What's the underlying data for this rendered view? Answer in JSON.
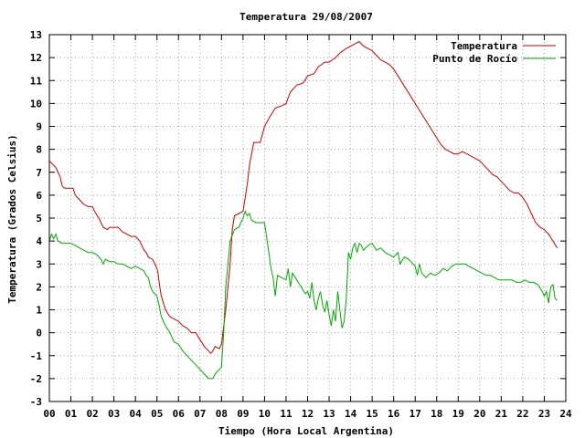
{
  "chart_data": {
    "type": "line",
    "title": "Temperatura 29/08/2007",
    "xlabel": "Tiempo (Hora Local Argentina)",
    "ylabel": "Temperatura (Grados Celsius)",
    "xlim": [
      0,
      24
    ],
    "ylim": [
      -3,
      13
    ],
    "x_ticks": [
      0,
      1,
      2,
      3,
      4,
      5,
      6,
      7,
      8,
      9,
      10,
      11,
      12,
      13,
      14,
      15,
      16,
      17,
      18,
      19,
      20,
      21,
      22,
      23,
      24
    ],
    "x_tick_labels": [
      "00",
      "01",
      "02",
      "03",
      "04",
      "05",
      "06",
      "07",
      "08",
      "09",
      "10",
      "11",
      "12",
      "13",
      "14",
      "15",
      "16",
      "17",
      "18",
      "19",
      "20",
      "21",
      "22",
      "23",
      "24"
    ],
    "y_ticks": [
      -3,
      -2,
      -1,
      0,
      1,
      2,
      3,
      4,
      5,
      6,
      7,
      8,
      9,
      10,
      11,
      12,
      13
    ],
    "y_tick_labels": [
      "-3",
      "-2",
      "-1",
      "0",
      "1",
      "2",
      "3",
      "4",
      "5",
      "6",
      "7",
      "8",
      "9",
      "10",
      "11",
      "12",
      "13"
    ],
    "grid": true,
    "legend_position": "top-right",
    "series": [
      {
        "name": "Temperatura",
        "color": "#cc0000",
        "points": [
          [
            0.0,
            7.5
          ],
          [
            0.3,
            7.2
          ],
          [
            0.5,
            6.8
          ],
          [
            0.6,
            6.4
          ],
          [
            0.7,
            6.3
          ],
          [
            1.0,
            6.3
          ],
          [
            1.1,
            6.3
          ],
          [
            1.2,
            6.0
          ],
          [
            1.4,
            5.8
          ],
          [
            1.6,
            5.6
          ],
          [
            1.8,
            5.5
          ],
          [
            2.0,
            5.5
          ],
          [
            2.1,
            5.3
          ],
          [
            2.3,
            5.0
          ],
          [
            2.4,
            4.8
          ],
          [
            2.5,
            4.6
          ],
          [
            2.7,
            4.5
          ],
          [
            2.8,
            4.6
          ],
          [
            3.0,
            4.6
          ],
          [
            3.2,
            4.6
          ],
          [
            3.4,
            4.4
          ],
          [
            3.6,
            4.3
          ],
          [
            3.8,
            4.2
          ],
          [
            4.0,
            4.2
          ],
          [
            4.2,
            4.0
          ],
          [
            4.3,
            3.8
          ],
          [
            4.4,
            3.6
          ],
          [
            4.5,
            3.5
          ],
          [
            4.6,
            3.3
          ],
          [
            4.8,
            3.2
          ],
          [
            4.9,
            3.0
          ],
          [
            5.0,
            2.8
          ],
          [
            5.05,
            2.6
          ],
          [
            5.1,
            2.2
          ],
          [
            5.2,
            1.6
          ],
          [
            5.4,
            1.0
          ],
          [
            5.6,
            0.7
          ],
          [
            5.8,
            0.6
          ],
          [
            6.0,
            0.5
          ],
          [
            6.2,
            0.3
          ],
          [
            6.4,
            0.2
          ],
          [
            6.6,
            0.0
          ],
          [
            6.8,
            0.0
          ],
          [
            7.0,
            -0.3
          ],
          [
            7.2,
            -0.6
          ],
          [
            7.4,
            -0.8
          ],
          [
            7.5,
            -0.9
          ],
          [
            7.6,
            -0.8
          ],
          [
            7.7,
            -0.6
          ],
          [
            7.9,
            -0.7
          ],
          [
            8.0,
            -0.5
          ],
          [
            8.2,
            1.0
          ],
          [
            8.4,
            3.0
          ],
          [
            8.5,
            4.5
          ],
          [
            8.6,
            5.1
          ],
          [
            8.8,
            5.2
          ],
          [
            9.0,
            5.3
          ],
          [
            9.2,
            6.5
          ],
          [
            9.3,
            7.3
          ],
          [
            9.4,
            7.8
          ],
          [
            9.5,
            8.3
          ],
          [
            9.8,
            8.3
          ],
          [
            10.0,
            9.0
          ],
          [
            10.3,
            9.5
          ],
          [
            10.5,
            9.8
          ],
          [
            10.8,
            9.9
          ],
          [
            11.0,
            10.0
          ],
          [
            11.2,
            10.5
          ],
          [
            11.5,
            10.8
          ],
          [
            11.8,
            10.9
          ],
          [
            12.0,
            11.2
          ],
          [
            12.3,
            11.3
          ],
          [
            12.5,
            11.6
          ],
          [
            12.8,
            11.8
          ],
          [
            13.0,
            11.8
          ],
          [
            13.3,
            12.0
          ],
          [
            13.5,
            12.2
          ],
          [
            13.8,
            12.4
          ],
          [
            14.0,
            12.5
          ],
          [
            14.2,
            12.6
          ],
          [
            14.4,
            12.7
          ],
          [
            14.6,
            12.5
          ],
          [
            14.8,
            12.4
          ],
          [
            15.0,
            12.3
          ],
          [
            15.2,
            12.1
          ],
          [
            15.4,
            11.9
          ],
          [
            15.6,
            11.8
          ],
          [
            15.8,
            11.7
          ],
          [
            16.0,
            11.5
          ],
          [
            16.2,
            11.2
          ],
          [
            16.4,
            10.9
          ],
          [
            16.6,
            10.6
          ],
          [
            16.8,
            10.3
          ],
          [
            17.0,
            10.0
          ],
          [
            17.2,
            9.7
          ],
          [
            17.4,
            9.4
          ],
          [
            17.6,
            9.1
          ],
          [
            17.8,
            8.8
          ],
          [
            18.0,
            8.5
          ],
          [
            18.2,
            8.2
          ],
          [
            18.4,
            8.0
          ],
          [
            18.6,
            7.9
          ],
          [
            18.8,
            7.8
          ],
          [
            19.0,
            7.8
          ],
          [
            19.2,
            7.9
          ],
          [
            19.4,
            7.8
          ],
          [
            19.6,
            7.7
          ],
          [
            19.8,
            7.6
          ],
          [
            20.0,
            7.5
          ],
          [
            20.2,
            7.3
          ],
          [
            20.4,
            7.1
          ],
          [
            20.6,
            6.9
          ],
          [
            20.8,
            6.8
          ],
          [
            21.0,
            6.6
          ],
          [
            21.2,
            6.4
          ],
          [
            21.4,
            6.2
          ],
          [
            21.6,
            6.1
          ],
          [
            21.8,
            6.1
          ],
          [
            22.0,
            5.9
          ],
          [
            22.2,
            5.6
          ],
          [
            22.4,
            5.2
          ],
          [
            22.6,
            4.8
          ],
          [
            22.8,
            4.6
          ],
          [
            23.0,
            4.5
          ],
          [
            23.2,
            4.3
          ],
          [
            23.4,
            4.0
          ],
          [
            23.6,
            3.7
          ]
        ]
      },
      {
        "name": "Punto de Rocío",
        "color": "#00aa00",
        "points": [
          [
            0.0,
            4.0
          ],
          [
            0.1,
            4.3
          ],
          [
            0.2,
            4.1
          ],
          [
            0.3,
            4.3
          ],
          [
            0.4,
            4.0
          ],
          [
            0.6,
            3.9
          ],
          [
            0.8,
            3.9
          ],
          [
            1.0,
            3.9
          ],
          [
            1.2,
            3.8
          ],
          [
            1.4,
            3.7
          ],
          [
            1.6,
            3.6
          ],
          [
            1.8,
            3.5
          ],
          [
            2.0,
            3.5
          ],
          [
            2.2,
            3.4
          ],
          [
            2.4,
            3.2
          ],
          [
            2.5,
            3.0
          ],
          [
            2.6,
            3.2
          ],
          [
            2.8,
            3.1
          ],
          [
            3.0,
            3.1
          ],
          [
            3.2,
            3.0
          ],
          [
            3.4,
            3.0
          ],
          [
            3.6,
            2.9
          ],
          [
            3.8,
            2.8
          ],
          [
            4.0,
            2.9
          ],
          [
            4.2,
            2.8
          ],
          [
            4.4,
            2.7
          ],
          [
            4.5,
            2.5
          ],
          [
            4.6,
            2.4
          ],
          [
            4.7,
            2.0
          ],
          [
            4.8,
            1.8
          ],
          [
            5.0,
            1.6
          ],
          [
            5.1,
            1.2
          ],
          [
            5.2,
            0.7
          ],
          [
            5.4,
            0.3
          ],
          [
            5.6,
            0.0
          ],
          [
            5.8,
            -0.4
          ],
          [
            6.0,
            -0.5
          ],
          [
            6.2,
            -0.8
          ],
          [
            6.4,
            -1.0
          ],
          [
            6.6,
            -1.2
          ],
          [
            6.8,
            -1.4
          ],
          [
            7.0,
            -1.6
          ],
          [
            7.2,
            -1.8
          ],
          [
            7.4,
            -2.0
          ],
          [
            7.6,
            -2.0
          ],
          [
            7.7,
            -1.8
          ],
          [
            7.9,
            -1.6
          ],
          [
            8.0,
            -1.5
          ],
          [
            8.1,
            0.0
          ],
          [
            8.2,
            2.0
          ],
          [
            8.4,
            4.0
          ],
          [
            8.6,
            4.5
          ],
          [
            8.8,
            4.6
          ],
          [
            9.0,
            5.0
          ],
          [
            9.1,
            5.3
          ],
          [
            9.2,
            5.1
          ],
          [
            9.3,
            5.2
          ],
          [
            9.4,
            4.9
          ],
          [
            9.6,
            4.8
          ],
          [
            9.8,
            4.8
          ],
          [
            10.0,
            4.8
          ],
          [
            10.2,
            3.5
          ],
          [
            10.3,
            2.8
          ],
          [
            10.4,
            2.4
          ],
          [
            10.5,
            1.6
          ],
          [
            10.6,
            2.5
          ],
          [
            10.8,
            2.4
          ],
          [
            11.0,
            2.3
          ],
          [
            11.1,
            2.8
          ],
          [
            11.2,
            2.0
          ],
          [
            11.3,
            2.6
          ],
          [
            11.5,
            2.3
          ],
          [
            11.7,
            2.0
          ],
          [
            11.9,
            1.7
          ],
          [
            12.0,
            1.8
          ],
          [
            12.1,
            1.5
          ],
          [
            12.2,
            2.2
          ],
          [
            12.3,
            1.4
          ],
          [
            12.4,
            1.0
          ],
          [
            12.5,
            1.5
          ],
          [
            12.6,
            1.8
          ],
          [
            12.7,
            1.2
          ],
          [
            12.8,
            0.9
          ],
          [
            12.9,
            1.4
          ],
          [
            13.0,
            0.8
          ],
          [
            13.1,
            0.3
          ],
          [
            13.2,
            1.0
          ],
          [
            13.3,
            0.5
          ],
          [
            13.4,
            1.8
          ],
          [
            13.5,
            1.0
          ],
          [
            13.6,
            0.2
          ],
          [
            13.7,
            0.5
          ],
          [
            13.8,
            1.5
          ],
          [
            13.9,
            3.5
          ],
          [
            14.0,
            3.2
          ],
          [
            14.1,
            3.7
          ],
          [
            14.2,
            3.9
          ],
          [
            14.3,
            3.5
          ],
          [
            14.4,
            3.9
          ],
          [
            14.5,
            3.8
          ],
          [
            14.6,
            3.6
          ],
          [
            14.8,
            3.8
          ],
          [
            15.0,
            3.9
          ],
          [
            15.2,
            3.6
          ],
          [
            15.4,
            3.7
          ],
          [
            15.6,
            3.5
          ],
          [
            15.8,
            3.4
          ],
          [
            16.0,
            3.3
          ],
          [
            16.2,
            3.5
          ],
          [
            16.3,
            3.0
          ],
          [
            16.5,
            3.3
          ],
          [
            16.7,
            3.2
          ],
          [
            16.9,
            3.0
          ],
          [
            17.0,
            2.9
          ],
          [
            17.1,
            2.5
          ],
          [
            17.2,
            3.0
          ],
          [
            17.3,
            2.6
          ],
          [
            17.5,
            2.4
          ],
          [
            17.7,
            2.6
          ],
          [
            17.9,
            2.5
          ],
          [
            18.1,
            2.6
          ],
          [
            18.3,
            2.8
          ],
          [
            18.5,
            2.7
          ],
          [
            18.7,
            2.9
          ],
          [
            18.9,
            3.0
          ],
          [
            19.1,
            3.0
          ],
          [
            19.3,
            3.0
          ],
          [
            19.5,
            2.9
          ],
          [
            19.7,
            2.8
          ],
          [
            19.9,
            2.7
          ],
          [
            20.1,
            2.6
          ],
          [
            20.3,
            2.5
          ],
          [
            20.5,
            2.5
          ],
          [
            20.7,
            2.4
          ],
          [
            20.9,
            2.3
          ],
          [
            21.1,
            2.3
          ],
          [
            21.3,
            2.3
          ],
          [
            21.5,
            2.3
          ],
          [
            21.7,
            2.2
          ],
          [
            21.9,
            2.2
          ],
          [
            22.1,
            2.3
          ],
          [
            22.3,
            2.2
          ],
          [
            22.5,
            2.2
          ],
          [
            22.7,
            2.1
          ],
          [
            22.9,
            1.8
          ],
          [
            23.0,
            1.6
          ],
          [
            23.1,
            1.8
          ],
          [
            23.2,
            1.3
          ],
          [
            23.3,
            2.0
          ],
          [
            23.4,
            2.1
          ],
          [
            23.5,
            1.5
          ],
          [
            23.6,
            1.4
          ]
        ]
      }
    ]
  }
}
